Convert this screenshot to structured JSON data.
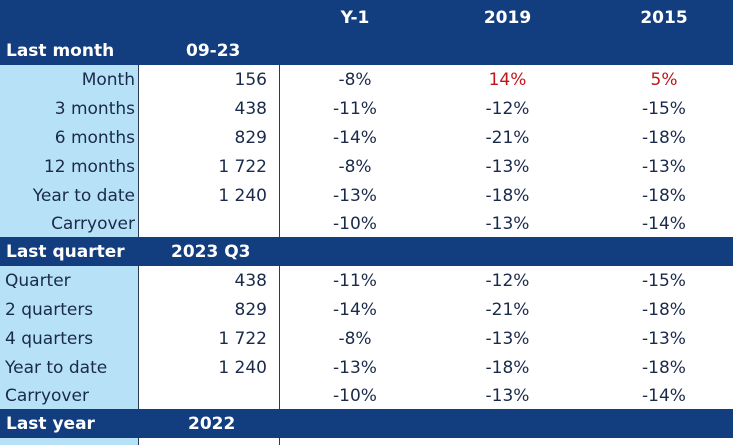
{
  "header": {
    "col_y1": "Y-1",
    "col_2019": "2019",
    "col_2015": "2015"
  },
  "sections": [
    {
      "title": "Last month",
      "period": "09-23",
      "rows": [
        {
          "label": "Month",
          "value": "156",
          "y1": "-8%",
          "v2019": "14%",
          "v2015": "5%"
        },
        {
          "label": "3 months",
          "value": "438",
          "y1": "-11%",
          "v2019": "-12%",
          "v2015": "-15%"
        },
        {
          "label": "6 months",
          "value": "829",
          "y1": "-14%",
          "v2019": "-21%",
          "v2015": "-18%"
        },
        {
          "label": "12 months",
          "value": "1 722",
          "y1": "-8%",
          "v2019": "-13%",
          "v2015": "-13%"
        },
        {
          "label": "Year to date",
          "value": "1 240",
          "y1": "-13%",
          "v2019": "-18%",
          "v2015": "-18%"
        },
        {
          "label": "Carryover",
          "value": "",
          "y1": "-10%",
          "v2019": "-13%",
          "v2015": "-14%"
        }
      ]
    },
    {
      "title": "Last quarter",
      "period": "2023 Q3",
      "rows": [
        {
          "label": "Quarter",
          "value": "438",
          "y1": "-11%",
          "v2019": "-12%",
          "v2015": "-15%"
        },
        {
          "label": "2 quarters",
          "value": "829",
          "y1": "-14%",
          "v2019": "-21%",
          "v2015": "-18%"
        },
        {
          "label": "4 quarters",
          "value": "1 722",
          "y1": "-8%",
          "v2019": "-13%",
          "v2015": "-13%"
        },
        {
          "label": "Year to date",
          "value": "1 240",
          "y1": "-13%",
          "v2019": "-18%",
          "v2015": "-18%"
        },
        {
          "label": "Carryover",
          "value": "",
          "y1": "-10%",
          "v2019": "-13%",
          "v2015": "-14%"
        }
      ]
    },
    {
      "title": "Last year",
      "period": "2022"
    }
  ],
  "colors": {
    "header_navy": "#123d7e",
    "label_blue": "#b7e1f7",
    "positive_red": "#c0141c"
  }
}
